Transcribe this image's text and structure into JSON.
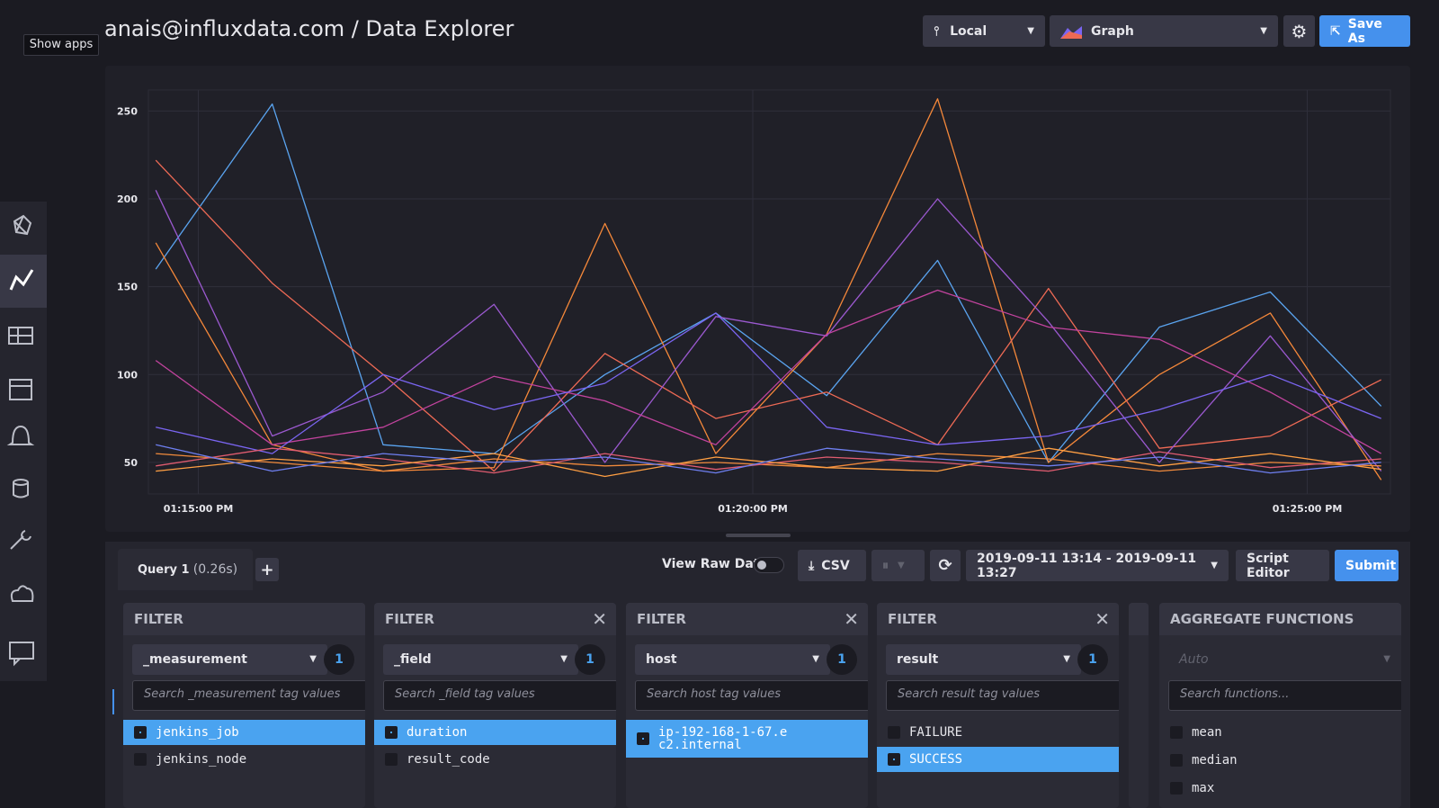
{
  "header": {
    "show_apps": "Show apps",
    "title": "anais@influxdata.com / Data Explorer",
    "source": "Local",
    "view": "Graph",
    "save": "Save As"
  },
  "chart_data": {
    "type": "line",
    "x": [
      "01:14:37 PM",
      "01:15:40 PM",
      "01:16:40 PM",
      "01:17:40 PM",
      "01:18:40 PM",
      "01:19:40 PM",
      "01:20:40 PM",
      "01:21:40 PM",
      "01:22:40 PM",
      "01:23:40 PM",
      "01:24:40 PM",
      "01:25:40 PM"
    ],
    "xlim": [
      "01:14:33 PM",
      "01:25:45 PM"
    ],
    "xticks": [
      "01:15:00 PM",
      "01:20:00 PM",
      "01:25:00 PM"
    ],
    "ylim": [
      32,
      262
    ],
    "yticks": [
      50,
      100,
      150,
      200,
      250
    ],
    "grid": true,
    "series": [
      {
        "color": "#5aa4f0",
        "values": [
          160,
          254,
          60,
          55,
          100,
          135,
          88,
          165,
          50,
          127,
          147,
          82
        ]
      },
      {
        "color": "#f5883a",
        "values": [
          175,
          60,
          45,
          47,
          186,
          55,
          123,
          257,
          50,
          100,
          135,
          40
        ]
      },
      {
        "color": "#ee6a55",
        "values": [
          222,
          152,
          100,
          45,
          112,
          75,
          90,
          60,
          149,
          58,
          65,
          97
        ]
      },
      {
        "color": "#9b59d0",
        "values": [
          205,
          65,
          90,
          140,
          50,
          133,
          122,
          200,
          130,
          50,
          122,
          45
        ]
      },
      {
        "color": "#c2439e",
        "values": [
          108,
          60,
          70,
          99,
          85,
          60,
          123,
          148,
          127,
          120,
          90,
          55
        ]
      },
      {
        "color": "#7a65f1",
        "values": [
          70,
          55,
          100,
          80,
          95,
          135,
          70,
          60,
          65,
          80,
          100,
          75
        ]
      },
      {
        "color": "#f08a3c",
        "values": [
          55,
          50,
          45,
          52,
          48,
          50,
          47,
          55,
          52,
          45,
          50,
          48
        ]
      },
      {
        "color": "#e05c70",
        "values": [
          48,
          58,
          52,
          44,
          55,
          46,
          53,
          50,
          45,
          56,
          47,
          52
        ]
      },
      {
        "color": "#ff9f43",
        "values": [
          45,
          52,
          48,
          55,
          42,
          53,
          47,
          45,
          58,
          48,
          55,
          46
        ]
      },
      {
        "color": "#6e7ff0",
        "values": [
          60,
          45,
          55,
          50,
          53,
          44,
          58,
          52,
          48,
          53,
          44,
          50
        ]
      }
    ]
  },
  "query": {
    "tab": "Query 1",
    "time": "(0.26s)",
    "raw": "View Raw Data",
    "csv": "CSV",
    "range": "2019-09-11 13:14 - 2019-09-11 13:27",
    "script_editor": "Script Editor",
    "submit": "Submit"
  },
  "filters": [
    {
      "title": "FILTER",
      "closable": false,
      "key": "_measurement",
      "count": 1,
      "placeholder": "Search _measurement tag values",
      "items": [
        {
          "label": "jenkins_job",
          "selected": true
        },
        {
          "label": "jenkins_node",
          "selected": false
        }
      ]
    },
    {
      "title": "FILTER",
      "closable": true,
      "key": "_field",
      "count": 1,
      "placeholder": "Search _field tag values",
      "items": [
        {
          "label": "duration",
          "selected": true
        },
        {
          "label": "result_code",
          "selected": false
        }
      ]
    },
    {
      "title": "FILTER",
      "closable": true,
      "key": "host",
      "count": 1,
      "placeholder": "Search host tag values",
      "items": [
        {
          "label": "ip-192-168-1-67.ec2.internal",
          "selected": true
        }
      ]
    },
    {
      "title": "FILTER",
      "closable": true,
      "key": "result",
      "count": 1,
      "placeholder": "Search result tag values",
      "items": [
        {
          "label": "FAILURE",
          "selected": false
        },
        {
          "label": "SUCCESS",
          "selected": true
        }
      ]
    }
  ],
  "aggregate": {
    "title": "AGGREGATE FUNCTIONS",
    "period": "Auto",
    "placeholder": "Search functions...",
    "items": [
      "mean",
      "median",
      "max"
    ]
  }
}
